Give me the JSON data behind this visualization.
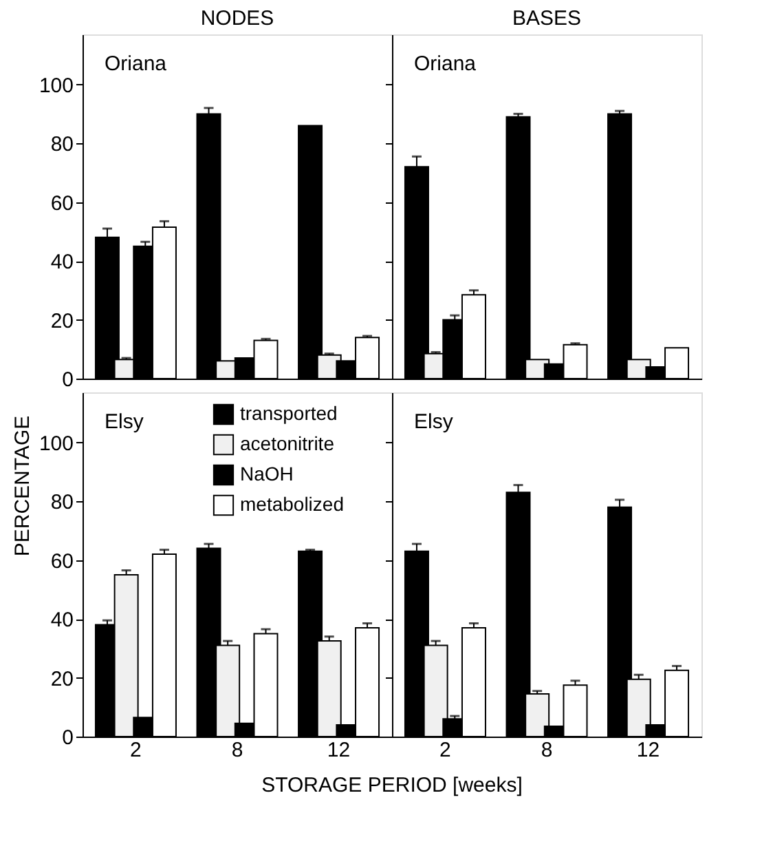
{
  "chart_data": [
    {
      "type": "bar",
      "title": "NODES",
      "annotations": [
        "Oriana"
      ],
      "categories": [
        "2",
        "8",
        "12"
      ],
      "ylim": [
        0,
        117
      ],
      "yticks": [
        0,
        20,
        40,
        60,
        80,
        100
      ],
      "grid": false,
      "legend": false,
      "tick_labels": "y",
      "series": [
        {
          "color": "#000000",
          "values": [
            48,
            90,
            86
          ],
          "errors": [
            3,
            2,
            0
          ]
        },
        {
          "color": "#f0f0f0",
          "values": [
            6.5,
            6,
            8
          ],
          "errors": [
            0.5,
            0,
            0.5
          ]
        },
        {
          "color": "#000000",
          "values": [
            45,
            7,
            6
          ],
          "errors": [
            1.5,
            0,
            0
          ]
        },
        {
          "color": "#ffffff",
          "values": [
            51.5,
            13,
            14
          ],
          "errors": [
            2,
            0.5,
            0.5
          ]
        }
      ]
    },
    {
      "type": "bar",
      "title": "BASES",
      "annotations": [
        "Oriana"
      ],
      "categories": [
        "2",
        "8",
        "12"
      ],
      "ylim": [
        0,
        117
      ],
      "yticks": [
        0,
        20,
        40,
        60,
        80,
        100
      ],
      "grid": false,
      "legend": false,
      "tick_labels": false,
      "series": [
        {
          "color": "#000000",
          "values": [
            72,
            89,
            90
          ],
          "errors": [
            3.5,
            1,
            1
          ]
        },
        {
          "color": "#f0f0f0",
          "values": [
            8.5,
            6.5,
            6.5
          ],
          "errors": [
            0.5,
            0,
            0
          ]
        },
        {
          "color": "#000000",
          "values": [
            20,
            5,
            4
          ],
          "errors": [
            1.5,
            0,
            0
          ]
        },
        {
          "color": "#ffffff",
          "values": [
            28.5,
            11.5,
            10.5
          ],
          "errors": [
            1.5,
            0.5,
            0
          ]
        }
      ]
    },
    {
      "type": "bar",
      "xlabel": "STORAGE PERIOD [weeks]",
      "ylabel": "PERCENTAGE",
      "annotations": [
        "Elsy"
      ],
      "categories": [
        "2",
        "8",
        "12"
      ],
      "ylim": [
        0,
        117
      ],
      "yticks": [
        0,
        20,
        40,
        60,
        80,
        100
      ],
      "grid": false,
      "legend": "top",
      "series": [
        {
          "name": "transported",
          "color": "#000000",
          "values": [
            38,
            64,
            63
          ],
          "errors": [
            1.5,
            1.5,
            0.5
          ]
        },
        {
          "name": "acetonitrite",
          "color": "#f0f0f0",
          "values": [
            55,
            31,
            32.5
          ],
          "errors": [
            1.5,
            1.5,
            1.5
          ]
        },
        {
          "name": "NaOH",
          "color": "#000000",
          "values": [
            6.5,
            4.5,
            4
          ],
          "errors": [
            0,
            0,
            0
          ]
        },
        {
          "name": "metabolized",
          "color": "#ffffff",
          "values": [
            62,
            35,
            37
          ],
          "errors": [
            1.5,
            1.5,
            1.5
          ]
        }
      ]
    },
    {
      "type": "bar",
      "annotations": [
        "Elsy"
      ],
      "categories": [
        "2",
        "8",
        "12"
      ],
      "ylim": [
        0,
        117
      ],
      "yticks": [
        0,
        20,
        40,
        60,
        80,
        100
      ],
      "grid": false,
      "legend": false,
      "tick_labels": "x",
      "series": [
        {
          "color": "#000000",
          "values": [
            63,
            83,
            78
          ],
          "errors": [
            2.5,
            2.5,
            2.5
          ]
        },
        {
          "color": "#f0f0f0",
          "values": [
            31,
            14.5,
            19.5
          ],
          "errors": [
            1.5,
            1,
            1.5
          ]
        },
        {
          "color": "#000000",
          "values": [
            6,
            3.5,
            4
          ],
          "errors": [
            1,
            0,
            0
          ]
        },
        {
          "color": "#ffffff",
          "values": [
            37,
            17.5,
            22.5
          ],
          "errors": [
            1.5,
            1.5,
            1.5
          ]
        }
      ]
    }
  ]
}
